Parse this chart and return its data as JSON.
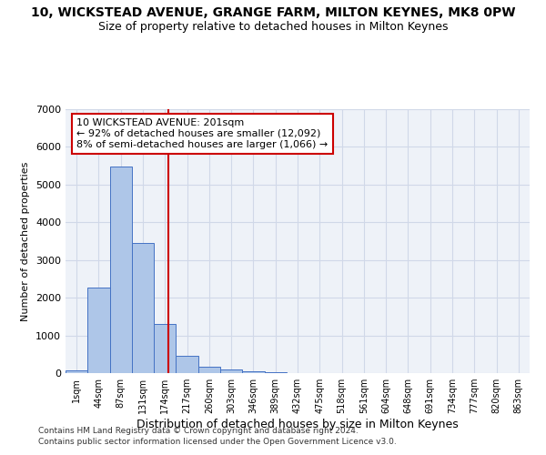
{
  "title": "10, WICKSTEAD AVENUE, GRANGE FARM, MILTON KEYNES, MK8 0PW",
  "subtitle": "Size of property relative to detached houses in Milton Keynes",
  "xlabel": "Distribution of detached houses by size in Milton Keynes",
  "ylabel": "Number of detached properties",
  "footnote1": "Contains HM Land Registry data © Crown copyright and database right 2024.",
  "footnote2": "Contains public sector information licensed under the Open Government Licence v3.0.",
  "bar_labels": [
    "1sqm",
    "44sqm",
    "87sqm",
    "131sqm",
    "174sqm",
    "217sqm",
    "260sqm",
    "303sqm",
    "346sqm",
    "389sqm",
    "432sqm",
    "475sqm",
    "518sqm",
    "561sqm",
    "604sqm",
    "648sqm",
    "691sqm",
    "734sqm",
    "777sqm",
    "820sqm",
    "863sqm"
  ],
  "bar_values": [
    75,
    2270,
    5470,
    3440,
    1310,
    460,
    160,
    90,
    55,
    35,
    0,
    0,
    0,
    0,
    0,
    0,
    0,
    0,
    0,
    0,
    0
  ],
  "bar_color": "#aec6e8",
  "bar_edge_color": "#4472c4",
  "vline_x": 4.65,
  "vline_color": "#cc0000",
  "annotation_line1": "10 WICKSTEAD AVENUE: 201sqm",
  "annotation_line2": "← 92% of detached houses are smaller (12,092)",
  "annotation_line3": "8% of semi-detached houses are larger (1,066) →",
  "ylim": [
    0,
    7000
  ],
  "grid_color": "#d0d8e8",
  "bg_color": "#eef2f8",
  "title_fontsize": 10,
  "subtitle_fontsize": 9,
  "ann_fontsize": 8,
  "ylabel_fontsize": 8,
  "xlabel_fontsize": 9,
  "footnote_fontsize": 6.5
}
